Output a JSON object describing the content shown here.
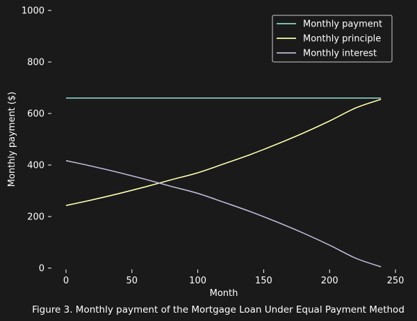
{
  "caption": "Figure 3. Monthly payment of the Mortgage Loan Under Equal Payment Method",
  "chart_data": {
    "type": "line",
    "xlabel": "Month",
    "ylabel": "Monthly payment ($)",
    "xlim": [
      -10,
      250
    ],
    "ylim": [
      0,
      1000
    ],
    "x_ticks": [
      0,
      50,
      100,
      150,
      200,
      250
    ],
    "y_ticks": [
      0,
      200,
      400,
      600,
      800,
      1000
    ],
    "grid": false,
    "legend_position": "top-right",
    "colors": {
      "background": "#1a1a1a",
      "text": "#ffffff"
    },
    "series": [
      {
        "name": "Monthly payment",
        "color": "#8dd3c7",
        "x": [
          0,
          239
        ],
        "y": [
          660,
          660
        ]
      },
      {
        "name": "Monthly principle",
        "color": "#ffffb3",
        "x": [
          0,
          20,
          40,
          60,
          80,
          100,
          120,
          140,
          160,
          180,
          200,
          220,
          239
        ],
        "y": [
          243,
          265,
          289,
          315,
          343,
          370,
          405,
          441,
          481,
          524,
          571,
          622,
          655
        ]
      },
      {
        "name": "Monthly interest",
        "color": "#bebada",
        "x": [
          0,
          20,
          40,
          60,
          80,
          100,
          120,
          140,
          160,
          180,
          200,
          220,
          239
        ],
        "y": [
          417,
          395,
          371,
          345,
          317,
          290,
          255,
          219,
          179,
          136,
          89,
          38,
          5
        ]
      }
    ]
  }
}
